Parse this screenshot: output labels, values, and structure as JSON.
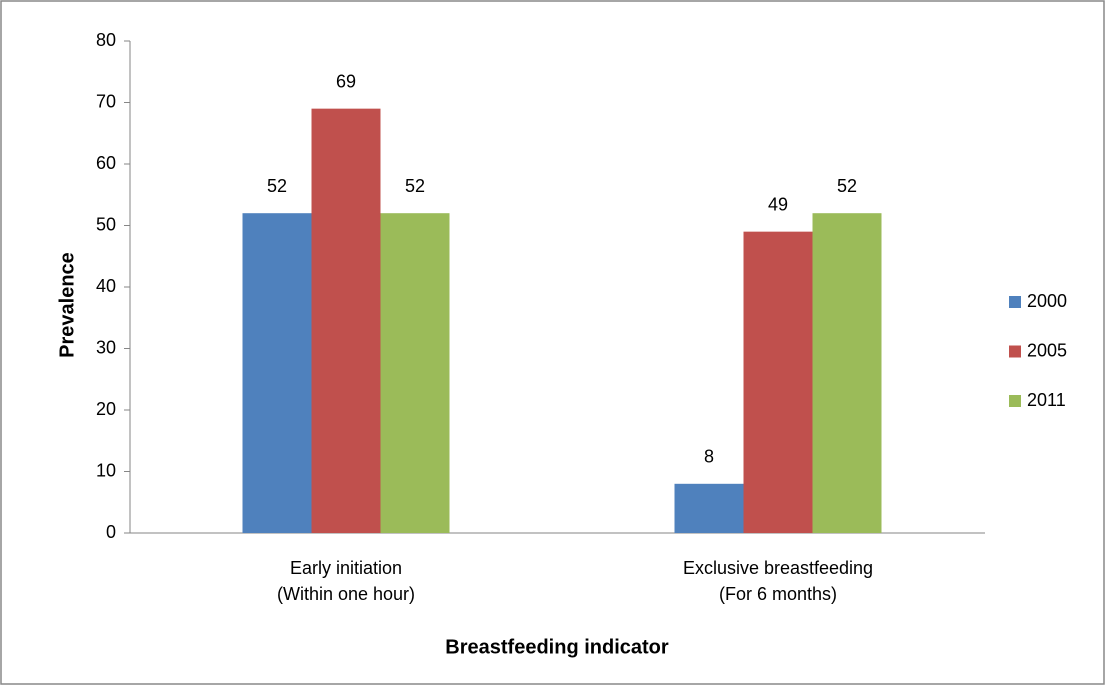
{
  "chart_data": {
    "type": "bar",
    "categories": [
      [
        "Early initiation",
        "(Within one hour)"
      ],
      [
        "Exclusive breastfeeding",
        "(For 6 months)"
      ]
    ],
    "series": [
      {
        "name": "2000",
        "color": "#4f81bd",
        "values": [
          52,
          8
        ]
      },
      {
        "name": "2005",
        "color": "#c0504d",
        "values": [
          69,
          49
        ]
      },
      {
        "name": "2011",
        "color": "#9bbb59",
        "values": [
          52,
          52
        ]
      }
    ],
    "ylim": [
      0,
      80
    ],
    "yticks": [
      0,
      10,
      20,
      30,
      40,
      50,
      60,
      70,
      80
    ],
    "ylabel": "Prevalence",
    "xlabel": "Breastfeeding indicator",
    "grid": false,
    "legend": "right"
  }
}
